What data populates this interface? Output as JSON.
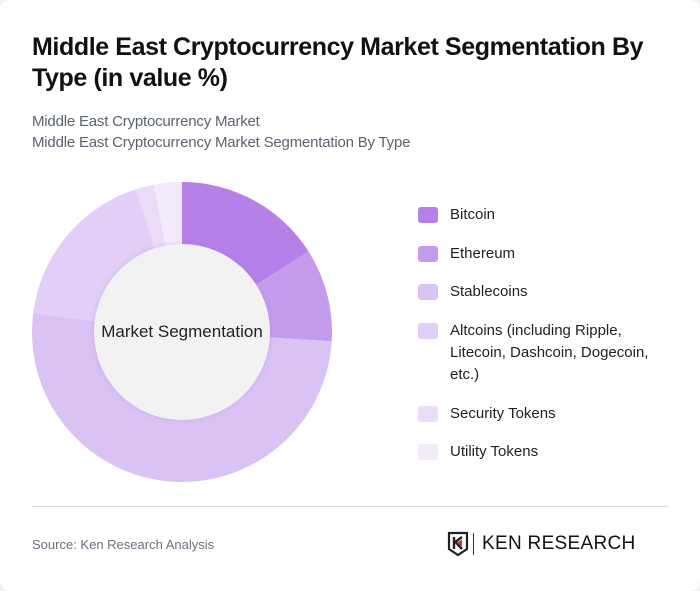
{
  "header": {
    "title": "Middle East Cryptocurrency Market Segmentation By Type (in value %)",
    "subtitle_line1": "Middle East Cryptocurrency Market",
    "subtitle_line2": "Middle East Cryptocurrency Market Segmentation By Type"
  },
  "chart": {
    "center_label": "Market Segmentation"
  },
  "legend": {
    "items": [
      {
        "label": "Bitcoin",
        "color": "#b580e8"
      },
      {
        "label": "Ethereum",
        "color": "#c59ced"
      },
      {
        "label": "Stablecoins",
        "color": "#dbc2f5"
      },
      {
        "label": "Altcoins (including Ripple, Litecoin, Dashcoin, Dogecoin, etc.)",
        "color": "#e2cef6"
      },
      {
        "label": "Security Tokens",
        "color": "#eadbf9"
      },
      {
        "label": "Utility Tokens",
        "color": "#f3ebfc"
      }
    ]
  },
  "footer": {
    "source": "Source: Ken Research Analysis",
    "logo_text": "KEN RESEARCH"
  },
  "chart_data": {
    "type": "pie",
    "subtype": "donut",
    "title": "Middle East Cryptocurrency Market Segmentation By Type (in value %)",
    "subtitle": "Middle East Cryptocurrency Market / Middle East Cryptocurrency Market Segmentation By Type",
    "center_label": "Market Segmentation",
    "categories": [
      "Bitcoin",
      "Ethereum",
      "Stablecoins",
      "Altcoins (including Ripple, Litecoin, Dashcoin, Dogecoin, etc.)",
      "Security Tokens",
      "Utility Tokens"
    ],
    "values": [
      16,
      10,
      51,
      18,
      2,
      3
    ],
    "colors": [
      "#b580e8",
      "#c59ced",
      "#dbc2f5",
      "#e2cef6",
      "#eadbf9",
      "#f3ebfc"
    ],
    "start_angle": "12 o'clock, clockwise",
    "legend_position": "right",
    "source": "Source: Ken Research Analysis"
  }
}
